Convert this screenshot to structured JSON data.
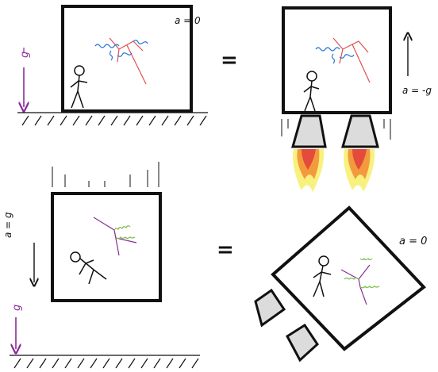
{
  "panels": {
    "top_left": {
      "gravity_label": "g",
      "accel_label": "a = 0"
    },
    "top_right": {
      "accel_label": "a = -g"
    },
    "bottom_left": {
      "gravity_label": "g",
      "accel_label": "a = g"
    },
    "bottom_right": {
      "accel_label": "a = 0"
    }
  },
  "equals_symbol": "=",
  "colors": {
    "ink": "#111111",
    "gravity_arrow": "#8a2b9a",
    "photon_blue": "#2a78d6",
    "fermion_red": "#e0504a",
    "gluon_green": "#7cc04a",
    "fermion_purple": "#8a2b9a",
    "rocket_grey": "#dcdcdc",
    "flame_yellow": "#f7ef6a",
    "flame_orange": "#f39a3d",
    "flame_red": "#e34b3c"
  }
}
